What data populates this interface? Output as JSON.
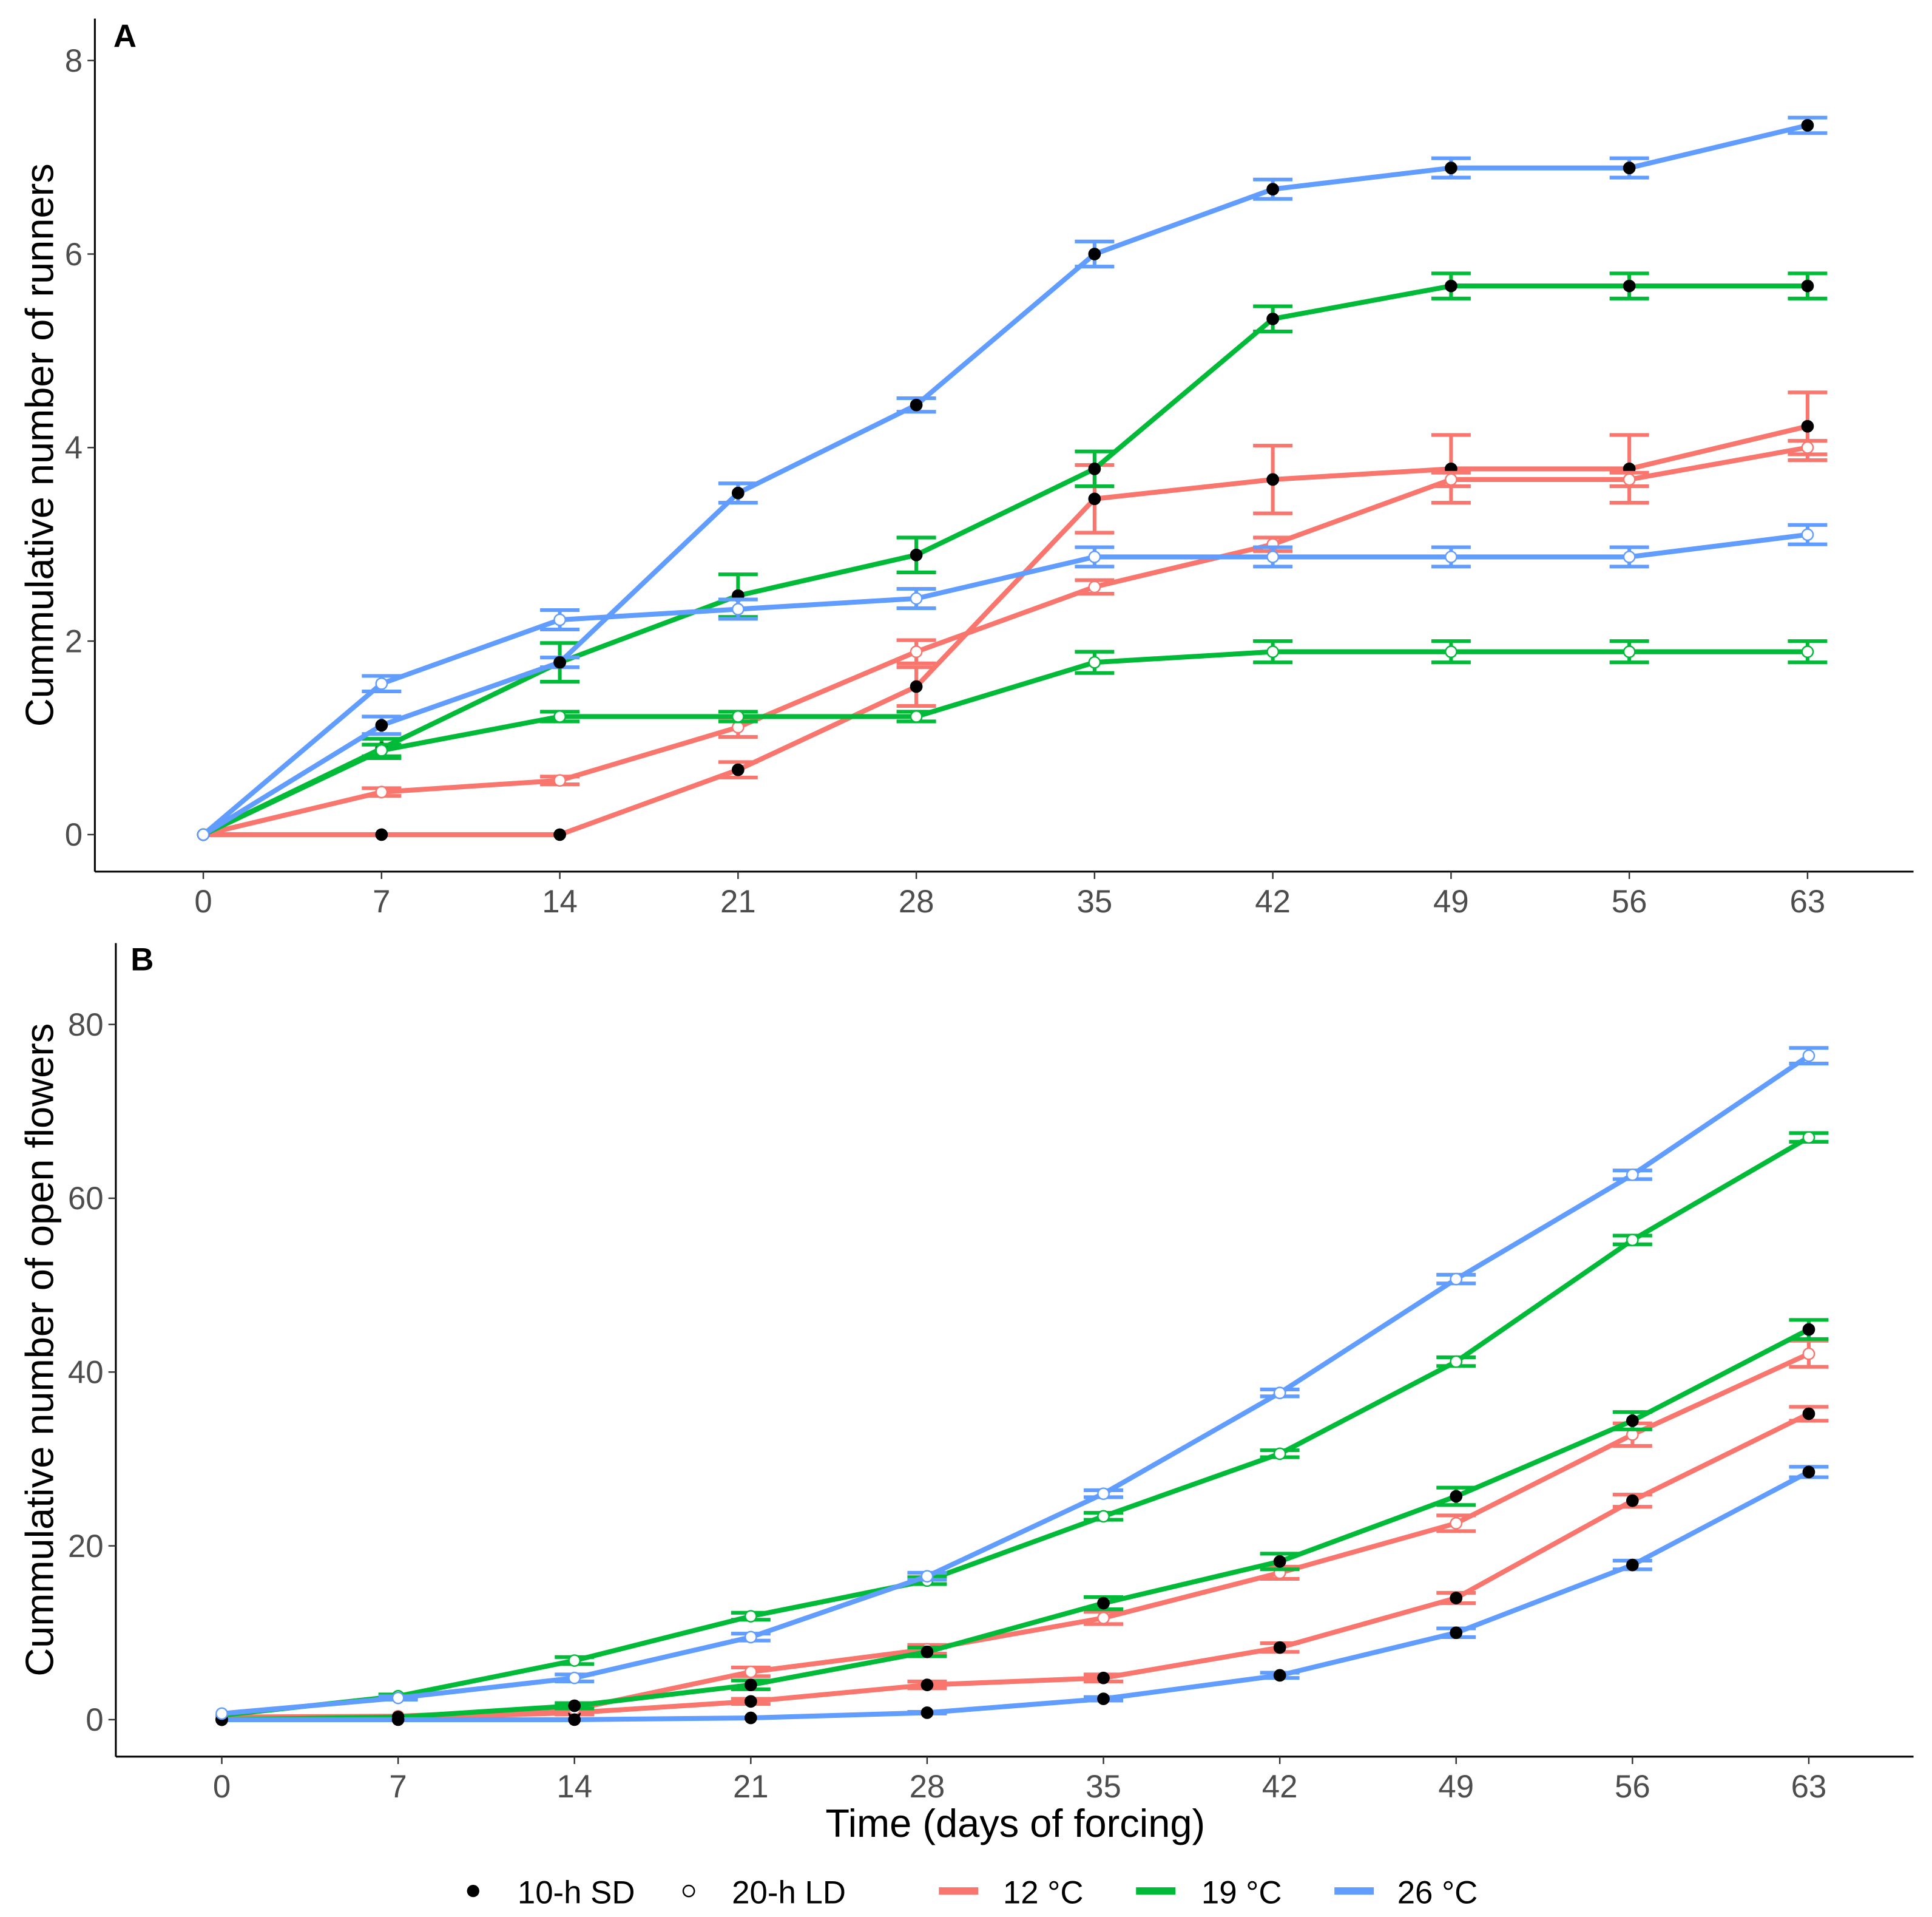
{
  "chart_data": [
    {
      "type": "line",
      "panel_label": "A",
      "title": "",
      "xlabel": "",
      "ylabel": "Cummulative number of runners",
      "x": [
        0,
        7,
        14,
        21,
        28,
        35,
        42,
        49,
        56,
        63
      ],
      "xticks": [
        "0",
        "7",
        "14",
        "21",
        "28",
        "35",
        "42",
        "49",
        "56",
        "63"
      ],
      "yticks": [
        "0",
        "2",
        "4",
        "6",
        "8"
      ],
      "ylim": [
        -0.4,
        8.4
      ],
      "grid": false,
      "series": [
        {
          "name": "12 °C 10-h SD",
          "temp": "12 °C",
          "photoperiod": "10-h SD",
          "values": [
            0,
            0,
            0,
            0.67,
            1.53,
            3.47,
            3.67,
            3.78,
            3.78,
            4.22
          ],
          "se": [
            0,
            0,
            0,
            0.08,
            0.2,
            0.35,
            0.35,
            0.35,
            0.35,
            0.35
          ]
        },
        {
          "name": "12 °C 20-h LD",
          "temp": "12 °C",
          "photoperiod": "20-h LD",
          "values": [
            0,
            0.44,
            0.56,
            1.11,
            1.89,
            2.56,
            3.0,
            3.67,
            3.67,
            4.0
          ],
          "se": [
            0,
            0.04,
            0.04,
            0.1,
            0.12,
            0.07,
            0.07,
            0.07,
            0.07,
            0.07
          ]
        },
        {
          "name": "19 °C 10-h SD",
          "temp": "19 °C",
          "photoperiod": "10-h SD",
          "values": [
            0,
            0.89,
            1.78,
            2.47,
            2.89,
            3.78,
            5.33,
            5.67,
            5.67,
            5.67
          ],
          "se": [
            0,
            0.1,
            0.2,
            0.22,
            0.18,
            0.18,
            0.13,
            0.13,
            0.13,
            0.13
          ]
        },
        {
          "name": "19 °C 20-h LD",
          "temp": "19 °C",
          "photoperiod": "20-h LD",
          "values": [
            0,
            0.87,
            1.22,
            1.22,
            1.22,
            1.78,
            1.89,
            1.89,
            1.89,
            1.89
          ],
          "se": [
            0,
            0.06,
            0.05,
            0.05,
            0.05,
            0.11,
            0.11,
            0.11,
            0.11,
            0.11
          ]
        },
        {
          "name": "26 °C 10-h SD",
          "temp": "26 °C",
          "photoperiod": "10-h SD",
          "values": [
            0,
            1.13,
            1.78,
            3.53,
            4.44,
            6.0,
            6.67,
            6.89,
            6.89,
            7.33
          ],
          "se": [
            0,
            0.09,
            0.05,
            0.1,
            0.07,
            0.13,
            0.1,
            0.1,
            0.1,
            0.08
          ]
        },
        {
          "name": "26 °C 20-h LD",
          "temp": "26 °C",
          "photoperiod": "20-h LD",
          "values": [
            0,
            1.56,
            2.22,
            2.33,
            2.44,
            2.87,
            2.87,
            2.87,
            2.87,
            3.1
          ],
          "se": [
            0,
            0.08,
            0.1,
            0.1,
            0.1,
            0.1,
            0.1,
            0.1,
            0.1,
            0.1
          ]
        }
      ]
    },
    {
      "type": "line",
      "panel_label": "B",
      "title": "",
      "xlabel": "Time (days of forcing)",
      "ylabel": "Cummulative number of open flowers",
      "x": [
        0,
        7,
        14,
        21,
        28,
        35,
        42,
        49,
        56,
        63
      ],
      "xticks": [
        "0",
        "7",
        "14",
        "21",
        "28",
        "35",
        "42",
        "49",
        "56",
        "63"
      ],
      "yticks": [
        "0",
        "20",
        "40",
        "60",
        "80"
      ],
      "ylim": [
        -4,
        89
      ],
      "grid": false,
      "series": [
        {
          "name": "12 °C 10-h SD",
          "temp": "12 °C",
          "photoperiod": "10-h SD",
          "values": [
            0,
            0.2,
            0.8,
            2.1,
            4.0,
            4.8,
            8.3,
            14.0,
            25.2,
            35.2
          ],
          "se": [
            0,
            0,
            0.2,
            0.3,
            0.4,
            0.4,
            0.5,
            0.6,
            0.7,
            0.8
          ]
        },
        {
          "name": "12 °C 20-h LD",
          "temp": "12 °C",
          "photoperiod": "20-h LD",
          "values": [
            0.3,
            0.4,
            1.2,
            5.5,
            8.1,
            11.7,
            16.9,
            22.6,
            32.8,
            42.1
          ],
          "se": [
            0,
            0,
            0.2,
            0.5,
            0.5,
            0.7,
            0.7,
            0.9,
            1.3,
            1.5
          ]
        },
        {
          "name": "19 °C 10-h SD",
          "temp": "19 °C",
          "photoperiod": "10-h SD",
          "values": [
            0,
            0.3,
            1.6,
            4.0,
            7.8,
            13.4,
            18.2,
            25.7,
            34.4,
            44.9
          ],
          "se": [
            0,
            0,
            0.3,
            0.5,
            0.5,
            0.7,
            0.9,
            1.0,
            1.0,
            1.1
          ]
        },
        {
          "name": "19 °C 20-h LD",
          "temp": "19 °C",
          "photoperiod": "20-h LD",
          "values": [
            0.5,
            2.7,
            6.8,
            11.9,
            16.0,
            23.4,
            30.6,
            41.2,
            55.2,
            67.0
          ],
          "se": [
            0,
            0.2,
            0.4,
            0.4,
            0.4,
            0.4,
            0.4,
            0.5,
            0.5,
            0.5
          ]
        },
        {
          "name": "26 °C 10-h SD",
          "temp": "26 °C",
          "photoperiod": "10-h SD",
          "values": [
            0,
            0,
            0,
            0.2,
            0.8,
            2.4,
            5.1,
            10.0,
            17.8,
            28.5
          ],
          "se": [
            0,
            0,
            0,
            0,
            0.1,
            0.2,
            0.3,
            0.5,
            0.5,
            0.6
          ]
        },
        {
          "name": "26 °C 20-h LD",
          "temp": "26 °C",
          "photoperiod": "20-h LD",
          "values": [
            0.7,
            2.5,
            4.8,
            9.5,
            16.5,
            26.0,
            37.6,
            50.7,
            62.7,
            76.4
          ],
          "se": [
            0,
            0.2,
            0.4,
            0.4,
            0.4,
            0.4,
            0.4,
            0.5,
            0.5,
            0.9
          ]
        }
      ]
    }
  ],
  "legend": {
    "placement": "bottom",
    "shape_items": [
      {
        "label": "10-h SD",
        "filled": true
      },
      {
        "label": "20-h LD",
        "filled": false
      }
    ],
    "color_items": [
      {
        "label": "12 °C",
        "color": "#F8766D"
      },
      {
        "label": "19 °C",
        "color": "#00BA38"
      },
      {
        "label": "26 °C",
        "color": "#619CFF"
      }
    ]
  },
  "colors": {
    "12 °C": "#F8766D",
    "19 °C": "#00BA38",
    "26 °C": "#619CFF"
  }
}
